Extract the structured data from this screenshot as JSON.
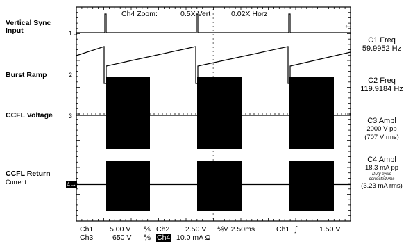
{
  "header": {
    "zoom_label": "Ch4 Zoom:",
    "zoom_vert": "0.5X Vert",
    "zoom_horz": "0.02X Horz"
  },
  "channels": {
    "ch1": {
      "label_line1": "Vertical Sync",
      "label_line2": "Input",
      "marker": "1→"
    },
    "ch2": {
      "label": "Burst Ramp",
      "marker": "2→"
    },
    "ch3": {
      "label": "CCFL Voltage",
      "marker": "3→"
    },
    "ch4": {
      "label_line1": "CCFL Return",
      "label_line2": "Current",
      "marker": "4→"
    }
  },
  "trigger_arrow": "←",
  "measurements": {
    "c1": {
      "name": "C1 Freq",
      "value": "59.9952 Hz"
    },
    "c2": {
      "name": "C2 Freq",
      "value": "119.9184 Hz"
    },
    "c3": {
      "name": "C3 Ampl",
      "value1": "2000 V pp",
      "value2": "(707 V rms)"
    },
    "c4": {
      "name": "C4 Ampl",
      "value1": "18.3 mA pp",
      "note1": "Duty cycle",
      "note2": "corrected rms",
      "value2": "(3.23 mA rms)"
    }
  },
  "footer": {
    "row1": {
      "ch1": "Ch1",
      "ch1_scale": "5.00 V",
      "ch1_sym": "⅍",
      "ch2": "Ch2",
      "ch2_scale": "2.50 V",
      "ch2_sym": "⅍",
      "timebase": "M 2.50ms",
      "trig_ch": "Ch1",
      "trig_sym": "∫",
      "trig_level": "1.50 V"
    },
    "row2": {
      "ch3": "Ch3",
      "ch3_scale": "650 V",
      "ch3_sym": "⅍",
      "ch4": "Ch4",
      "ch4_scale": "10.0 mA Ω"
    }
  },
  "colors": {
    "trace": "#000000",
    "graticule": "#000000",
    "background": "#ffffff"
  }
}
